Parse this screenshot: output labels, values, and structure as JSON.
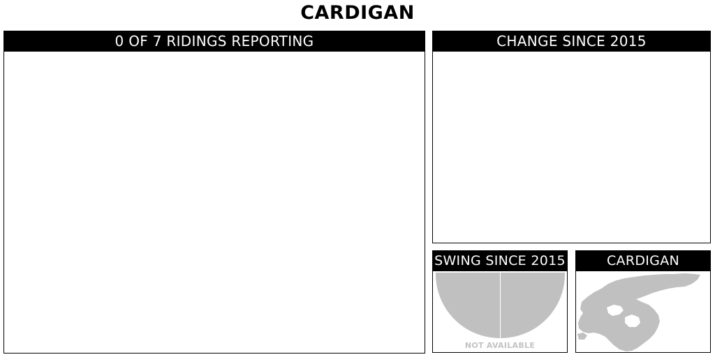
{
  "page": {
    "title": "CARDIGAN"
  },
  "results_panel": {
    "header": "0 OF 7 RIDINGS REPORTING"
  },
  "change_panel": {
    "header": "CHANGE SINCE 2015"
  },
  "swing_panel": {
    "header": "SWING SINCE 2015",
    "status": "NOT AVAILABLE"
  },
  "map_panel": {
    "header": "CARDIGAN"
  },
  "colors": {
    "header_background": "#000000",
    "header_text": "#ffffff",
    "placeholder_gray": "#c0c0c0",
    "status_text": "#c3c3c3"
  },
  "icons": {
    "swing_chart": "semicircle-swing-gauge",
    "map": "riding-map-shape"
  }
}
